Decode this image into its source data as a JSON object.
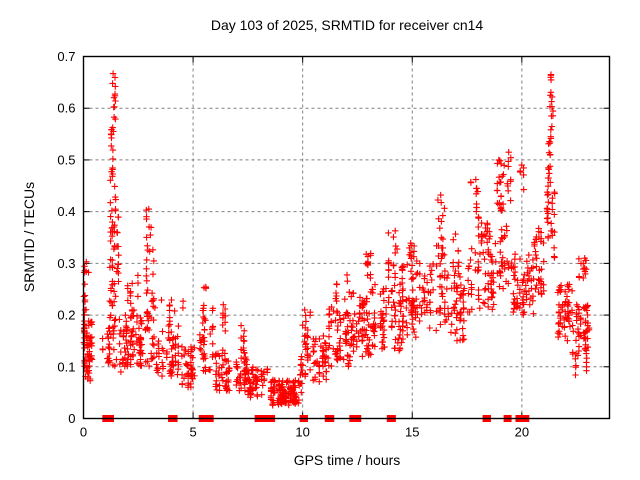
{
  "page": {
    "background": "#ffffff"
  },
  "chart_data": {
    "type": "scatter",
    "title": "Day 103 of 2025, SRMTID for receiver cn14",
    "xlabel": "GPS time / hours",
    "ylabel": "SRMTID / TECUs",
    "xlim": [
      0,
      24
    ],
    "ylim": [
      0,
      0.7
    ],
    "xtick_values": [
      0,
      5,
      10,
      15,
      20
    ],
    "xtick_labels": [
      "0",
      "5",
      "10",
      "15",
      "20"
    ],
    "ytick_values": [
      0,
      0.1,
      0.2,
      0.3,
      0.4,
      0.5,
      0.6,
      0.7
    ],
    "ytick_labels": [
      "0",
      "0.1",
      "0.2",
      "0.3",
      "0.4",
      "0.5",
      "0.6",
      "0.7"
    ],
    "grid": true,
    "legend": "none",
    "marker": {
      "shape": "plus",
      "color": "#ff0000",
      "size": 7
    },
    "grid_color": "#808080",
    "border_color": "#000000",
    "series_name": "SRMTID",
    "notable_points": [
      [
        1.35,
        0.667
      ],
      [
        1.33,
        0.648
      ],
      [
        1.38,
        0.602
      ],
      [
        1.36,
        0.555
      ],
      [
        1.34,
        0.502
      ],
      [
        2.98,
        0.405
      ],
      [
        5.5,
        0.253
      ],
      [
        6.38,
        0.22
      ],
      [
        9.2,
        0.03
      ],
      [
        16.3,
        0.432
      ],
      [
        17.9,
        0.462
      ],
      [
        18.95,
        0.5
      ],
      [
        19.4,
        0.515
      ],
      [
        20.0,
        0.49
      ],
      [
        21.33,
        0.665
      ],
      [
        21.3,
        0.625
      ],
      [
        21.35,
        0.585
      ],
      [
        21.32,
        0.545
      ],
      [
        22.7,
        0.3
      ]
    ],
    "point_generation": {
      "seed": 103,
      "clusters": [
        [
          0.0,
          0.4,
          0.1,
          0.19,
          55
        ],
        [
          0.0,
          0.3,
          0.19,
          0.31,
          14
        ],
        [
          0.05,
          0.35,
          0.07,
          0.1,
          10
        ],
        [
          0.85,
          1.15,
          0.1,
          0.18,
          12
        ],
        [
          1.2,
          1.6,
          0.28,
          0.47,
          40
        ],
        [
          1.25,
          1.5,
          0.47,
          0.57,
          12
        ],
        [
          1.3,
          1.45,
          0.575,
          0.67,
          9
        ],
        [
          1.2,
          1.65,
          0.18,
          0.28,
          18
        ],
        [
          1.15,
          1.75,
          0.09,
          0.18,
          22
        ],
        [
          1.75,
          2.6,
          0.1,
          0.2,
          65
        ],
        [
          1.8,
          2.5,
          0.2,
          0.28,
          14
        ],
        [
          2.75,
          3.25,
          0.2,
          0.335,
          22
        ],
        [
          2.85,
          3.15,
          0.335,
          0.41,
          7
        ],
        [
          2.6,
          3.35,
          0.09,
          0.2,
          38
        ],
        [
          3.35,
          4.5,
          0.08,
          0.18,
          55
        ],
        [
          3.5,
          4.3,
          0.18,
          0.23,
          9
        ],
        [
          4.5,
          5.3,
          0.06,
          0.14,
          45
        ],
        [
          4.5,
          4.65,
          0.21,
          0.24,
          2
        ],
        [
          5.3,
          6.0,
          0.09,
          0.22,
          40
        ],
        [
          5.4,
          5.7,
          0.22,
          0.255,
          3
        ],
        [
          6.0,
          6.6,
          0.05,
          0.13,
          38
        ],
        [
          6.25,
          6.5,
          0.13,
          0.22,
          9
        ],
        [
          6.6,
          7.5,
          0.05,
          0.12,
          50
        ],
        [
          7.05,
          7.45,
          0.12,
          0.19,
          11
        ],
        [
          7.5,
          8.45,
          0.04,
          0.1,
          55
        ],
        [
          8.45,
          9.95,
          0.025,
          0.075,
          100
        ],
        [
          8.9,
          9.75,
          0.03,
          0.06,
          40
        ],
        [
          9.75,
          10.0,
          0.05,
          0.12,
          10
        ],
        [
          10.0,
          10.35,
          0.08,
          0.22,
          30
        ],
        [
          10.35,
          11.2,
          0.07,
          0.16,
          45
        ],
        [
          11.2,
          12.2,
          0.1,
          0.22,
          65
        ],
        [
          11.45,
          12.15,
          0.22,
          0.28,
          10
        ],
        [
          12.2,
          13.2,
          0.12,
          0.25,
          75
        ],
        [
          12.4,
          13.1,
          0.25,
          0.33,
          12
        ],
        [
          13.2,
          14.5,
          0.13,
          0.26,
          75
        ],
        [
          13.9,
          14.45,
          0.27,
          0.37,
          16
        ],
        [
          14.5,
          15.4,
          0.15,
          0.3,
          65
        ],
        [
          14.7,
          15.3,
          0.3,
          0.345,
          13
        ],
        [
          15.4,
          16.6,
          0.17,
          0.3,
          55
        ],
        [
          16.1,
          16.5,
          0.3,
          0.43,
          18
        ],
        [
          16.6,
          17.5,
          0.15,
          0.28,
          50
        ],
        [
          16.8,
          17.25,
          0.28,
          0.36,
          11
        ],
        [
          17.5,
          18.75,
          0.2,
          0.33,
          60
        ],
        [
          17.65,
          18.1,
          0.35,
          0.465,
          14
        ],
        [
          18.15,
          18.6,
          0.335,
          0.39,
          18
        ],
        [
          18.8,
          19.55,
          0.25,
          0.38,
          32
        ],
        [
          18.85,
          19.2,
          0.4,
          0.5,
          22
        ],
        [
          19.3,
          19.5,
          0.42,
          0.52,
          9
        ],
        [
          19.55,
          20.55,
          0.2,
          0.32,
          65
        ],
        [
          19.9,
          20.15,
          0.44,
          0.5,
          5
        ],
        [
          20.55,
          21.05,
          0.24,
          0.37,
          35
        ],
        [
          21.15,
          21.5,
          0.3,
          0.45,
          28
        ],
        [
          21.2,
          21.45,
          0.45,
          0.56,
          16
        ],
        [
          21.25,
          21.42,
          0.56,
          0.63,
          7
        ],
        [
          21.28,
          21.4,
          0.63,
          0.668,
          4
        ],
        [
          21.5,
          22.3,
          0.15,
          0.26,
          55
        ],
        [
          22.3,
          23.1,
          0.12,
          0.22,
          55
        ],
        [
          22.55,
          22.95,
          0.27,
          0.31,
          13
        ],
        [
          22.4,
          23.0,
          0.08,
          0.12,
          8
        ]
      ],
      "zero_runs": [
        [
          0.95,
          1.3
        ],
        [
          3.95,
          4.05
        ],
        [
          4.1,
          4.2
        ],
        [
          5.35,
          5.85
        ],
        [
          7.9,
          8.65
        ],
        [
          9.95,
          10.15
        ],
        [
          11.1,
          11.35
        ],
        [
          12.22,
          12.3
        ],
        [
          12.38,
          12.45
        ],
        [
          12.5,
          12.58
        ],
        [
          13.93,
          14.0
        ],
        [
          14.08,
          14.16
        ],
        [
          18.3,
          18.5
        ],
        [
          19.26,
          19.44
        ],
        [
          19.8,
          20.02
        ],
        [
          20.08,
          20.25
        ]
      ]
    }
  }
}
